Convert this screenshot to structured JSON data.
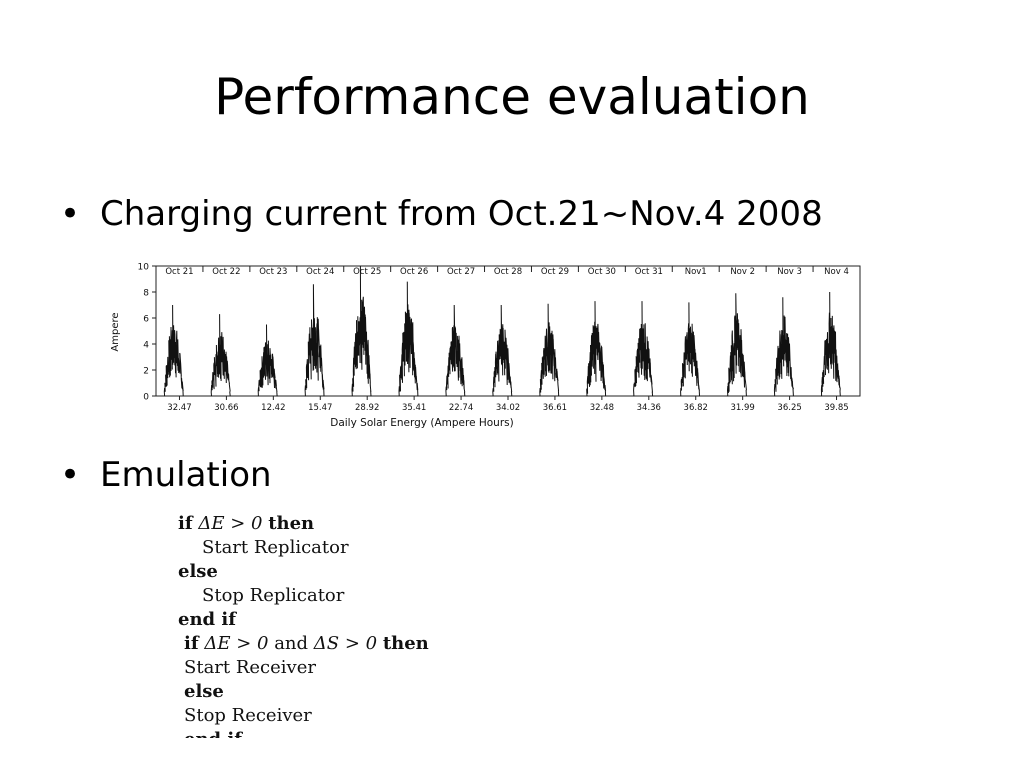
{
  "slide": {
    "title": "Performance evaluation",
    "bullets": [
      {
        "bullet_char": "•",
        "text": "Charging current from Oct.21~Nov.4 2008"
      },
      {
        "bullet_char": "•",
        "text": "Emulation"
      }
    ]
  },
  "chart_data": {
    "type": "line",
    "ylabel": "Ampere",
    "xlabel": "Daily Solar Energy (Ampere Hours)",
    "ylim": [
      0,
      10
    ],
    "yticks": [
      "0",
      "2",
      "4",
      "6",
      "8",
      "10"
    ],
    "categories": [
      "Oct 21",
      "Oct 22",
      "Oct 23",
      "Oct 24",
      "Oct 25",
      "Oct 26",
      "Oct 27",
      "Oct 28",
      "Oct 29",
      "Oct 30",
      "Oct 31",
      "Nov1",
      "Nov 2",
      "Nov 3",
      "Nov 4"
    ],
    "daily_energy": [
      "32.47",
      "30.66",
      "12.42",
      "15.47",
      "28.92",
      "35.41",
      "22.74",
      "34.02",
      "36.61",
      "32.48",
      "34.36",
      "36.82",
      "31.99",
      "36.25",
      "39.85"
    ],
    "daily_peak_ampere": [
      7.0,
      6.3,
      5.5,
      8.6,
      10.0,
      8.8,
      7.0,
      7.0,
      7.1,
      7.3,
      7.3,
      7.2,
      7.9,
      7.6,
      8.0
    ],
    "series_color": "#111111",
    "grid": false
  },
  "algorithm": {
    "lines": [
      {
        "kw1": "if",
        "math": "ΔE > 0",
        "kw2": "then",
        "text": ""
      },
      {
        "text": "Start Replicator"
      },
      {
        "kw1": "else"
      },
      {
        "text": "Stop Replicator"
      },
      {
        "kw1": "end if"
      },
      {
        "kw1": "if",
        "math": "ΔE > 0",
        "mid": "and",
        "math2": "ΔS > 0",
        "kw2": "then"
      },
      {
        "text": "Start Receiver"
      },
      {
        "kw1": "else"
      },
      {
        "text": "Stop Receiver"
      },
      {
        "kw1": "end if"
      }
    ]
  }
}
